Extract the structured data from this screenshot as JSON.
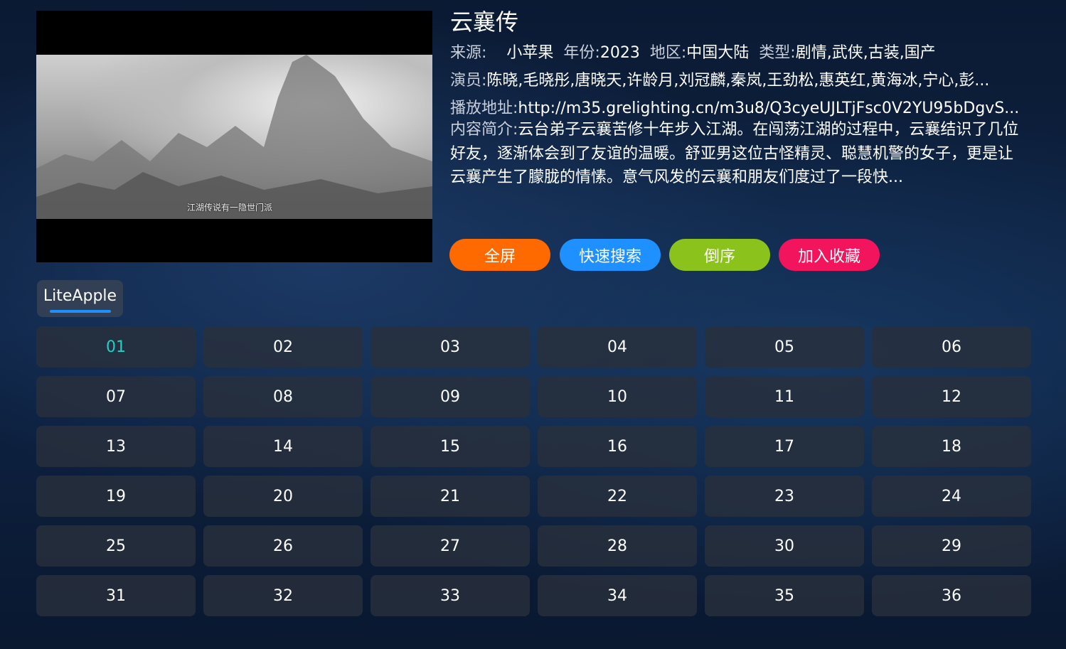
{
  "video": {
    "subtitle": "江湖传说有一隐世门派"
  },
  "title": "云襄传",
  "meta": {
    "source_label": "来源:",
    "source": "小苹果",
    "year_label": "年份:",
    "year": "2023",
    "region_label": "地区:",
    "region": "中国大陆",
    "type_label": "类型:",
    "type": "剧情,武侠,古装,国产"
  },
  "cast": {
    "label": "演员:",
    "value": "陈晓,毛晓彤,唐晓天,许龄月,刘冠麟,秦岚,王劲松,惠英红,黄海冰,宁心,彭..."
  },
  "play_url": {
    "label": "播放地址:",
    "value": "http://m35.grelighting.cn/m3u8/Q3cyeUJLTjFsc0V2YU95bDgvS..."
  },
  "summary": {
    "label": "内容简介:",
    "value": "云台弟子云襄苦修十年步入江湖。在闯荡江湖的过程中，云襄结识了几位好友，逐渐体会到了友谊的温暖。舒亚男这位古怪精灵、聪慧机警的女子，更是让云襄产生了朦胧的情愫。意气风发的云襄和朋友们度过了一段快..."
  },
  "buttons": [
    {
      "label": "全屏",
      "color": "#ff6a00"
    },
    {
      "label": "快速搜索",
      "color": "#1e90ff"
    },
    {
      "label": "倒序",
      "color": "#8cc21c"
    },
    {
      "label": "加入收藏",
      "color": "#f2145c"
    }
  ],
  "source_tab": {
    "label": "LiteApple",
    "accent": "#1e90ff"
  },
  "episodes": [
    "01",
    "02",
    "03",
    "04",
    "05",
    "06",
    "07",
    "08",
    "09",
    "10",
    "11",
    "12",
    "13",
    "14",
    "15",
    "16",
    "17",
    "18",
    "19",
    "20",
    "21",
    "22",
    "23",
    "24",
    "25",
    "26",
    "27",
    "28",
    "30",
    "29",
    "31",
    "32",
    "33",
    "34",
    "35",
    "36"
  ],
  "active_episode": "01",
  "active_color": "#19d3c5"
}
